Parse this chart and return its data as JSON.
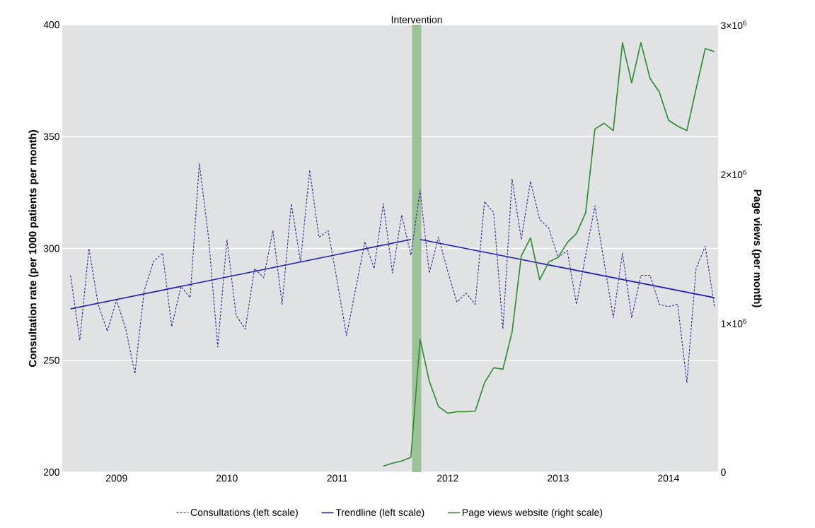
{
  "chart_data": {
    "type": "line",
    "ylabel": "Consultation rate (per 1000 patients per month)",
    "y2label": "Page views (per month)",
    "xlim": [
      "2008-07-04",
      "2014-06-13"
    ],
    "xticks": [
      {
        "value": "2009",
        "label": "2009"
      },
      {
        "value": "2010",
        "label": "2010"
      },
      {
        "value": "2011",
        "label": "2011"
      },
      {
        "value": "2012",
        "label": "2012"
      },
      {
        "value": "2013",
        "label": "2013"
      },
      {
        "value": "2014",
        "label": "2014"
      }
    ],
    "ylim": [
      200,
      400
    ],
    "yticks": [
      200,
      250,
      300,
      350,
      400
    ],
    "y2lim": [
      0,
      3000000
    ],
    "y2ticks": [
      0,
      {
        "value": 1000000,
        "label": "1×10$^{6}$"
      },
      {
        "value": 2000000,
        "label": "2×10$^{6}$"
      },
      {
        "value": 3000000,
        "label": "3×10$^{6}$"
      }
    ],
    "grid": "y",
    "legend": "bottom",
    "bands": [
      {
        "axis": "x",
        "from": "2011-09-05",
        "to": "2011-10-05",
        "label": "Intervention",
        "color": "#9cc196"
      }
    ],
    "series": [
      {
        "name": "Consultations (left scale)",
        "color": "#2b2b9a",
        "line_style": "dashed",
        "x": [
          "2008-08",
          "2008-09",
          "2008-10",
          "2008-11",
          "2008-12",
          "2009-01",
          "2009-02",
          "2009-03",
          "2009-04",
          "2009-05",
          "2009-06",
          "2009-07",
          "2009-08",
          "2009-09",
          "2009-10",
          "2009-11",
          "2009-12",
          "2010-01",
          "2010-02",
          "2010-03",
          "2010-04",
          "2010-05",
          "2010-06",
          "2010-07",
          "2010-08",
          "2010-09",
          "2010-10",
          "2010-11",
          "2010-12",
          "2011-01",
          "2011-02",
          "2011-03",
          "2011-04",
          "2011-05",
          "2011-06",
          "2011-07",
          "2011-08",
          "2011-09",
          "2011-10",
          "2011-11",
          "2011-12",
          "2012-01",
          "2012-02",
          "2012-03",
          "2012-04",
          "2012-05",
          "2012-06",
          "2012-07",
          "2012-08",
          "2012-09",
          "2012-10",
          "2012-11",
          "2012-12",
          "2013-01",
          "2013-02",
          "2013-03",
          "2013-04",
          "2013-05",
          "2013-06",
          "2013-07",
          "2013-08",
          "2013-09",
          "2013-10",
          "2013-11",
          "2013-12",
          "2014-01",
          "2014-02",
          "2014-03",
          "2014-04",
          "2014-05",
          "2014-06"
        ],
        "values": [
          288,
          259,
          300,
          275,
          263,
          277,
          264,
          244,
          281,
          294,
          298,
          265,
          283,
          278,
          338,
          305,
          256,
          304,
          270,
          264,
          291,
          287,
          308,
          275,
          320,
          294,
          335,
          305,
          308,
          285,
          261,
          282,
          303,
          291,
          320,
          289,
          315,
          297,
          326,
          289,
          305,
          290,
          276,
          280,
          275,
          321,
          316,
          264,
          331,
          304,
          330,
          313,
          309,
          296,
          299,
          275,
          297,
          319,
          294,
          269,
          298,
          269,
          288,
          288,
          275,
          274,
          275,
          240,
          291,
          301,
          274
        ]
      },
      {
        "name": "Trendline (left scale)",
        "color": "#1c1cb0",
        "x": [
          "2008-08",
          "2011-09"
        ],
        "values": [
          273,
          304
        ]
      },
      {
        "color": "#1c1cb0",
        "x": [
          "2011-10",
          "2014-06"
        ],
        "values": [
          304,
          278
        ]
      },
      {
        "name": "Page views website (right scale)",
        "color": "#2a8c2a",
        "axis": "y2",
        "x": [
          "2011-06",
          "2011-07",
          "2011-08",
          "2011-09",
          "2011-10",
          "2011-11",
          "2011-12",
          "2012-01",
          "2012-02",
          "2012-03",
          "2012-04",
          "2012-05",
          "2012-06",
          "2012-07",
          "2012-08",
          "2012-09",
          "2012-10",
          "2012-11",
          "2012-12",
          "2013-01",
          "2013-02",
          "2013-03",
          "2013-04",
          "2013-05",
          "2013-06",
          "2013-07",
          "2013-08",
          "2013-09",
          "2013-10",
          "2013-11",
          "2013-12",
          "2014-01",
          "2014-02",
          "2014-03",
          "2014-04",
          "2014-05",
          "2014-06"
        ],
        "values": [
          40000,
          60000,
          75000,
          100000,
          890000,
          610000,
          440000,
          395000,
          405000,
          405000,
          410000,
          600000,
          700000,
          690000,
          940000,
          1450000,
          1570000,
          1290000,
          1410000,
          1440000,
          1540000,
          1600000,
          1740000,
          2300000,
          2340000,
          2290000,
          2880000,
          2610000,
          2880000,
          2640000,
          2550000,
          2360000,
          2320000,
          2290000,
          2570000,
          2840000,
          2820000
        ]
      }
    ]
  }
}
